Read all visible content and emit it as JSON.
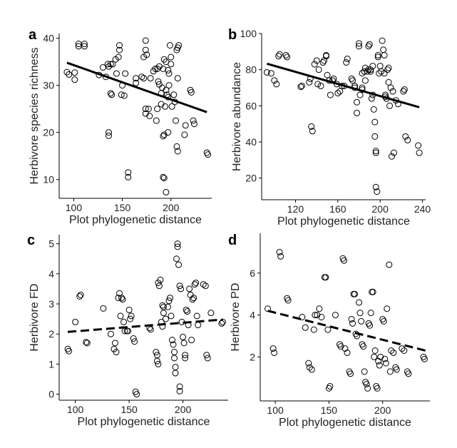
{
  "chart_data": [
    {
      "panel": "a",
      "type": "scatter",
      "xlabel": "Plot phylogenetic distance",
      "ylabel": "Herbivore species richness",
      "xlim": [
        85,
        242
      ],
      "ylim": [
        6,
        41
      ],
      "xticks": [
        100,
        150,
        200
      ],
      "yticks": [
        10,
        20,
        30,
        40
      ],
      "trend": {
        "style": "solid",
        "x": [
          93,
          237
        ],
        "y": [
          34.8,
          24.3
        ]
      },
      "points": [
        [
          93,
          32.8
        ],
        [
          95,
          32.3
        ],
        [
          101,
          32.7
        ],
        [
          101,
          31.2
        ],
        [
          105,
          38.8
        ],
        [
          105,
          38.3
        ],
        [
          111,
          38.8
        ],
        [
          111,
          38.3
        ],
        [
          126,
          32.2
        ],
        [
          130,
          33.8
        ],
        [
          135,
          34.5
        ],
        [
          133,
          31.8
        ],
        [
          136,
          34
        ],
        [
          138,
          34.5
        ],
        [
          140,
          34.5
        ],
        [
          138,
          28.3
        ],
        [
          139,
          28
        ],
        [
          136,
          20
        ],
        [
          136,
          19.3
        ],
        [
          143,
          35.5
        ],
        [
          144,
          32.5
        ],
        [
          146,
          36
        ],
        [
          147,
          38.5
        ],
        [
          147,
          37.5
        ],
        [
          150,
          30
        ],
        [
          149,
          28
        ],
        [
          152,
          27.8
        ],
        [
          153,
          32.5
        ],
        [
          156,
          11.5
        ],
        [
          156,
          10.5
        ],
        [
          164,
          31.5
        ],
        [
          164,
          30.5
        ],
        [
          170,
          31.8
        ],
        [
          172,
          31.5
        ],
        [
          174,
          39.5
        ],
        [
          174,
          37.5
        ],
        [
          175,
          36.5
        ],
        [
          172,
          36
        ],
        [
          174,
          25
        ],
        [
          174,
          24
        ],
        [
          177,
          25
        ],
        [
          178,
          23.5
        ],
        [
          179,
          31.5
        ],
        [
          182,
          33
        ],
        [
          184,
          33.5
        ],
        [
          186,
          33.5
        ],
        [
          186,
          25
        ],
        [
          185,
          22.5
        ],
        [
          188,
          34
        ],
        [
          187,
          30.8
        ],
        [
          188,
          30.2
        ],
        [
          190,
          26
        ],
        [
          190,
          28.3
        ],
        [
          191,
          29.5
        ],
        [
          192,
          33.5
        ],
        [
          193,
          35.5
        ],
        [
          195,
          35
        ],
        [
          194,
          25.5
        ],
        [
          193,
          19.5
        ],
        [
          192,
          19.2
        ],
        [
          192,
          10.5
        ],
        [
          193,
          10.3
        ],
        [
          195,
          29
        ],
        [
          196,
          28
        ],
        [
          197,
          27.5
        ],
        [
          198,
          30
        ],
        [
          197,
          20
        ],
        [
          198,
          32.5
        ],
        [
          197,
          33.2
        ],
        [
          200,
          34.5
        ],
        [
          199,
          38.5
        ],
        [
          200,
          36
        ],
        [
          201,
          25.5
        ],
        [
          203,
          28
        ],
        [
          204,
          26.5
        ],
        [
          205,
          22.5
        ],
        [
          207,
          31.5
        ],
        [
          206,
          37.5
        ],
        [
          207,
          38
        ],
        [
          208,
          38.5
        ],
        [
          206,
          17
        ],
        [
          207,
          16
        ],
        [
          215,
          21.5
        ],
        [
          214,
          19.5
        ],
        [
          220,
          29
        ],
        [
          221,
          28.5
        ],
        [
          223,
          22.5
        ],
        [
          224,
          21.8
        ],
        [
          195,
          7.3
        ],
        [
          237,
          15.7
        ],
        [
          238,
          15.3
        ]
      ]
    },
    {
      "panel": "b",
      "type": "scatter",
      "xlabel": "Plot phylogenetic distance",
      "ylabel": "Herbivore abundance",
      "xlim": [
        88,
        243
      ],
      "ylim": [
        8,
        100
      ],
      "xticks": [
        120,
        160,
        200,
        240
      ],
      "yticks": [
        20,
        40,
        60,
        80,
        100
      ],
      "trend": {
        "style": "solid",
        "x": [
          93,
          237
        ],
        "y": [
          83.3,
          59.2
        ]
      },
      "points": [
        [
          93,
          78.5
        ],
        [
          97,
          78
        ],
        [
          100,
          74
        ],
        [
          102,
          72
        ],
        [
          104,
          87.5
        ],
        [
          105,
          88.5
        ],
        [
          111,
          88
        ],
        [
          112,
          87
        ],
        [
          125,
          70.5
        ],
        [
          126,
          71
        ],
        [
          133,
          73
        ],
        [
          134,
          75
        ],
        [
          135,
          48.5
        ],
        [
          136,
          46
        ],
        [
          138,
          83
        ],
        [
          140,
          85
        ],
        [
          142,
          80
        ],
        [
          141,
          72
        ],
        [
          144,
          71
        ],
        [
          146,
          84
        ],
        [
          147,
          85
        ],
        [
          149,
          87.5
        ],
        [
          149,
          88
        ],
        [
          150,
          77
        ],
        [
          152,
          74
        ],
        [
          153,
          66
        ],
        [
          155,
          74
        ],
        [
          156,
          75
        ],
        [
          159,
          72
        ],
        [
          160,
          67
        ],
        [
          162,
          68
        ],
        [
          164,
          71
        ],
        [
          166,
          71
        ],
        [
          169,
          86
        ],
        [
          168,
          84
        ],
        [
          173,
          75
        ],
        [
          174,
          74
        ],
        [
          176,
          71
        ],
        [
          176,
          70
        ],
        [
          178,
          56
        ],
        [
          178,
          62
        ],
        [
          180,
          93
        ],
        [
          180,
          94.5
        ],
        [
          181,
          66
        ],
        [
          183,
          70
        ],
        [
          183,
          69
        ],
        [
          183,
          78
        ],
        [
          185,
          79
        ],
        [
          186,
          81
        ],
        [
          186,
          74
        ],
        [
          188,
          79
        ],
        [
          189,
          80
        ],
        [
          189,
          93
        ],
        [
          190,
          94
        ],
        [
          191,
          80
        ],
        [
          191,
          79
        ],
        [
          192,
          64
        ],
        [
          193,
          66
        ],
        [
          193,
          82
        ],
        [
          194,
          58
        ],
        [
          195,
          51
        ],
        [
          195,
          43
        ],
        [
          196,
          35
        ],
        [
          196,
          34
        ],
        [
          196,
          15
        ],
        [
          197,
          12.5
        ],
        [
          198,
          88
        ],
        [
          198,
          87
        ],
        [
          199,
          78
        ],
        [
          200,
          82
        ],
        [
          201,
          79
        ],
        [
          202,
          96
        ],
        [
          203,
          91
        ],
        [
          204,
          78
        ],
        [
          204,
          88
        ],
        [
          205,
          66
        ],
        [
          205,
          65
        ],
        [
          206,
          64
        ],
        [
          207,
          80
        ],
        [
          208,
          81
        ],
        [
          208,
          73
        ],
        [
          209,
          60
        ],
        [
          210,
          70
        ],
        [
          212,
          68
        ],
        [
          211,
          32
        ],
        [
          213,
          34
        ],
        [
          215,
          63
        ],
        [
          217,
          61
        ],
        [
          222,
          68
        ],
        [
          223,
          69
        ],
        [
          224,
          43
        ],
        [
          226,
          41
        ],
        [
          236,
          38
        ],
        [
          237,
          34
        ]
      ]
    },
    {
      "panel": "c",
      "type": "scatter",
      "xlabel": "Plot phylogenetic distance",
      "ylabel": "Herbivore FD",
      "xlim": [
        85,
        242
      ],
      "ylim": [
        -0.2,
        5.3
      ],
      "xticks": [
        100,
        150,
        200
      ],
      "yticks": [
        0,
        1,
        2,
        3,
        4,
        5
      ],
      "trend": {
        "style": "dashed",
        "x": [
          93,
          237
        ],
        "y": [
          2.07,
          2.48
        ]
      },
      "points": [
        [
          93,
          1.5
        ],
        [
          94,
          1.43
        ],
        [
          100,
          2.4
        ],
        [
          104,
          3.25
        ],
        [
          105,
          3.3
        ],
        [
          110,
          1.73
        ],
        [
          111,
          1.7
        ],
        [
          126,
          2.85
        ],
        [
          133,
          2
        ],
        [
          136,
          1.5
        ],
        [
          137,
          1.7
        ],
        [
          138,
          1.4
        ],
        [
          140,
          3.2
        ],
        [
          141,
          3.35
        ],
        [
          142,
          2.6
        ],
        [
          143,
          3.2
        ],
        [
          144,
          3.15
        ],
        [
          145,
          2.4
        ],
        [
          146,
          2.1
        ],
        [
          148,
          2.1
        ],
        [
          149,
          2.1
        ],
        [
          150,
          2.8
        ],
        [
          151,
          2.5
        ],
        [
          152,
          2.6
        ],
        [
          154,
          1.85
        ],
        [
          155,
          1.75
        ],
        [
          156,
          0.08
        ],
        [
          157,
          0.0
        ],
        [
          169,
          2.2
        ],
        [
          170,
          2.15
        ],
        [
          175,
          1.4
        ],
        [
          176,
          1.1
        ],
        [
          176,
          1.3
        ],
        [
          177,
          1.0
        ],
        [
          177,
          3.7
        ],
        [
          178,
          3.6
        ],
        [
          179,
          3.8
        ],
        [
          180,
          2.4
        ],
        [
          181,
          2.25
        ],
        [
          181,
          2.95
        ],
        [
          182,
          2.9
        ],
        [
          182,
          2.7
        ],
        [
          184,
          2.5
        ],
        [
          186,
          2.9
        ],
        [
          187,
          3.1
        ],
        [
          188,
          3.2
        ],
        [
          189,
          2.6
        ],
        [
          190,
          1.8
        ],
        [
          191,
          1.65
        ],
        [
          192,
          1.4
        ],
        [
          192,
          1.2
        ],
        [
          193,
          0.9
        ],
        [
          193,
          0.7
        ],
        [
          194,
          4.5
        ],
        [
          195,
          5.0
        ],
        [
          195,
          4.9
        ],
        [
          196,
          4.3
        ],
        [
          197,
          3.6
        ],
        [
          197,
          0.1
        ],
        [
          197,
          0.25
        ],
        [
          198,
          3.5
        ],
        [
          199,
          2.4
        ],
        [
          200,
          1.9
        ],
        [
          201,
          1.7
        ],
        [
          202,
          1.3
        ],
        [
          202,
          1.2
        ],
        [
          203,
          2.8
        ],
        [
          204,
          2.75
        ],
        [
          205,
          2.3
        ],
        [
          206,
          3.5
        ],
        [
          207,
          3.3
        ],
        [
          208,
          1.8
        ],
        [
          209,
          3.15
        ],
        [
          210,
          3.2
        ],
        [
          211,
          3.65
        ],
        [
          212,
          3.7
        ],
        [
          213,
          2.6
        ],
        [
          214,
          2.3
        ],
        [
          219,
          3.65
        ],
        [
          221,
          3.6
        ],
        [
          222,
          1.3
        ],
        [
          223,
          1.2
        ],
        [
          226,
          2.7
        ],
        [
          236,
          2.35
        ],
        [
          237,
          2.4
        ]
      ]
    },
    {
      "panel": "d",
      "type": "scatter",
      "xlabel": "Plot phylogenetic distance",
      "ylabel": "Herbivore PD",
      "xlim": [
        86,
        244
      ],
      "ylim": [
        -0.1,
        7.9
      ],
      "xticks": [
        100,
        150,
        200
      ],
      "yticks": [
        2,
        4,
        6
      ],
      "trend": {
        "style": "dashed",
        "x": [
          93,
          240
        ],
        "y": [
          4.2,
          2.3
        ]
      },
      "points": [
        [
          93,
          4.3
        ],
        [
          98,
          2.4
        ],
        [
          99,
          2.2
        ],
        [
          104,
          7.0
        ],
        [
          105,
          6.8
        ],
        [
          111,
          4.8
        ],
        [
          112,
          4.7
        ],
        [
          125,
          3.9
        ],
        [
          128,
          3.4
        ],
        [
          131,
          1.7
        ],
        [
          132,
          1.5
        ],
        [
          134,
          1.4
        ],
        [
          136,
          3.3
        ],
        [
          137,
          4.0
        ],
        [
          139,
          4.0
        ],
        [
          141,
          4.3
        ],
        [
          143,
          3.9
        ],
        [
          146,
          5.8
        ],
        [
          147,
          5.8
        ],
        [
          149,
          3.3
        ],
        [
          150,
          0.5
        ],
        [
          151,
          0.6
        ],
        [
          156,
          4.0
        ],
        [
          160,
          2.6
        ],
        [
          161,
          2.5
        ],
        [
          163,
          6.7
        ],
        [
          164,
          6.6
        ],
        [
          165,
          2.4
        ],
        [
          167,
          2.2
        ],
        [
          169,
          1.3
        ],
        [
          170,
          1.2
        ],
        [
          171,
          3.8
        ],
        [
          172,
          3.6
        ],
        [
          173,
          5.0
        ],
        [
          174,
          5.0
        ],
        [
          175,
          3.1
        ],
        [
          176,
          3.0
        ],
        [
          178,
          4.6
        ],
        [
          179,
          4.1
        ],
        [
          180,
          3.7
        ],
        [
          181,
          2.6
        ],
        [
          182,
          2.5
        ],
        [
          183,
          1.3
        ],
        [
          184,
          0.8
        ],
        [
          185,
          0.7
        ],
        [
          186,
          0.5
        ],
        [
          187,
          3.6
        ],
        [
          188,
          3.5
        ],
        [
          189,
          4.1
        ],
        [
          190,
          5.1
        ],
        [
          191,
          5.1
        ],
        [
          192,
          2.0
        ],
        [
          193,
          2.3
        ],
        [
          194,
          0.6
        ],
        [
          195,
          0.5
        ],
        [
          196,
          1.8
        ],
        [
          197,
          1.6
        ],
        [
          198,
          2.0
        ],
        [
          200,
          3.8
        ],
        [
          201,
          3.7
        ],
        [
          202,
          1.9
        ],
        [
          203,
          1.7
        ],
        [
          204,
          4.3
        ],
        [
          206,
          6.4
        ],
        [
          207,
          1.3
        ],
        [
          208,
          2.3
        ],
        [
          210,
          2.2
        ],
        [
          212,
          1.5
        ],
        [
          213,
          1.4
        ],
        [
          218,
          2.4
        ],
        [
          220,
          2.3
        ],
        [
          223,
          1.3
        ],
        [
          224,
          1.2
        ],
        [
          238,
          2.0
        ],
        [
          239,
          1.9
        ]
      ]
    }
  ]
}
